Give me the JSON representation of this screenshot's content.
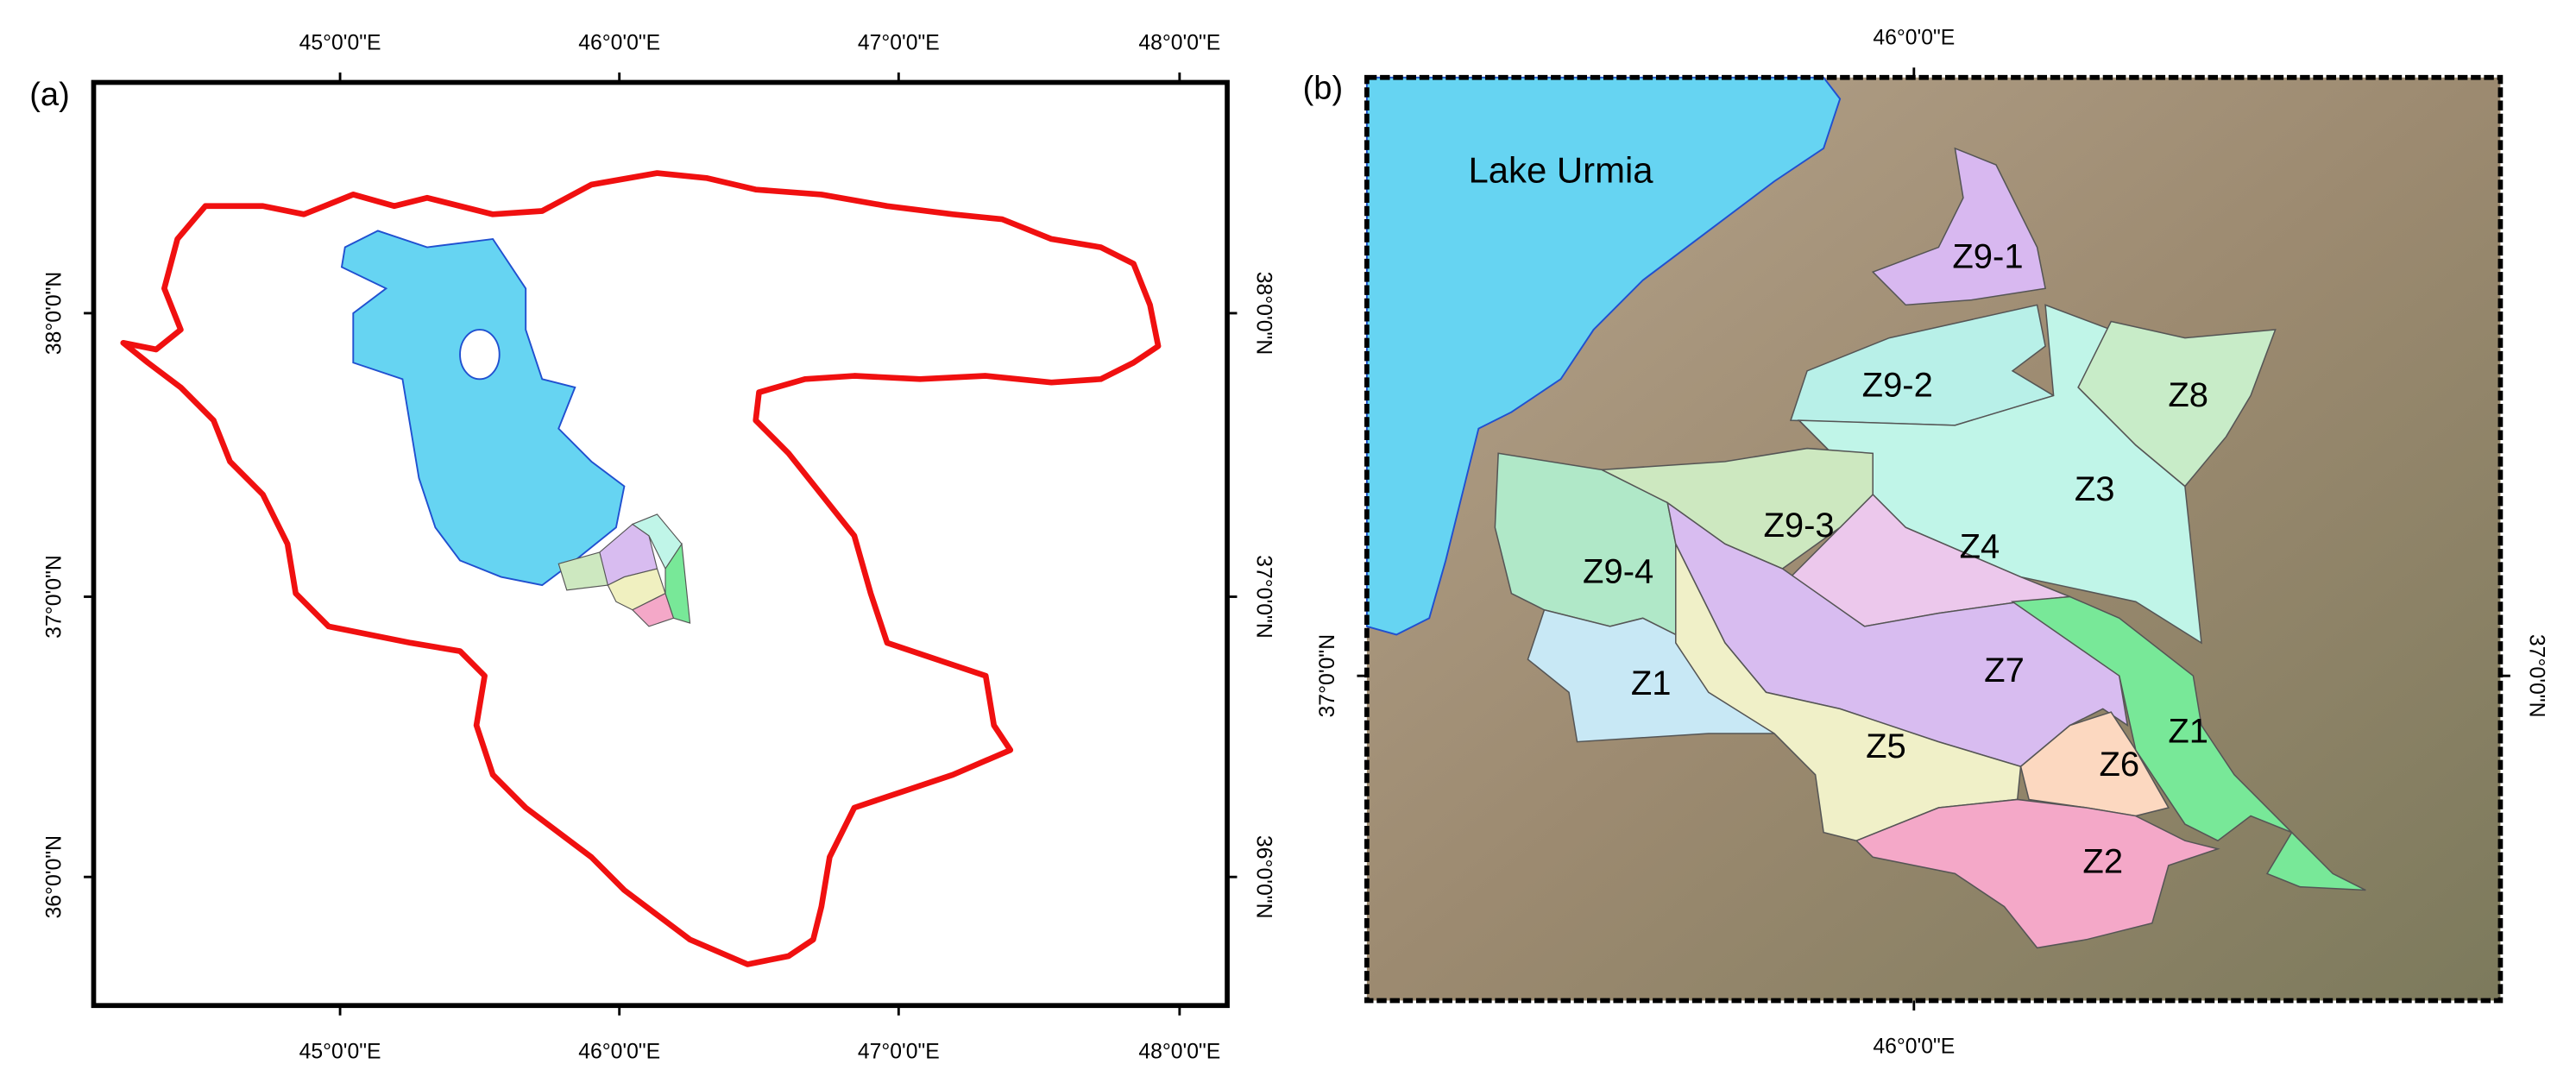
{
  "panel_a": {
    "label": "(a)",
    "top_labels": [
      "45°0'0\"E",
      "46°0'0\"E",
      "47°0'0\"E",
      "48°0'0\"E"
    ],
    "bottom_labels": [
      "45°0'0\"E",
      "46°0'0\"E",
      "47°0'0\"E",
      "48°0'0\"E"
    ],
    "left_labels": [
      "38°0'0\"N",
      "37°0'0\"N",
      "36°0'0\"N"
    ],
    "right_labels": [
      "38°0'0\"N",
      "37°0'0\"N",
      "36°0'0\"N"
    ]
  },
  "panel_b": {
    "label": "(b)",
    "lake_label": "Lake Urmia",
    "top_labels": [
      "46°0'0\"E"
    ],
    "bottom_labels": [
      "46°0'0\"E"
    ],
    "left_labels": [
      "37°0'0\"N"
    ],
    "right_labels": [
      "37°0'0\"N"
    ],
    "zones": [
      "Z9-1",
      "Z9-2",
      "Z8",
      "Z3",
      "Z9-3",
      "Z4",
      "Z9-4",
      "Z7",
      "Z1",
      "Z1",
      "Z5",
      "Z6",
      "Z2"
    ]
  }
}
